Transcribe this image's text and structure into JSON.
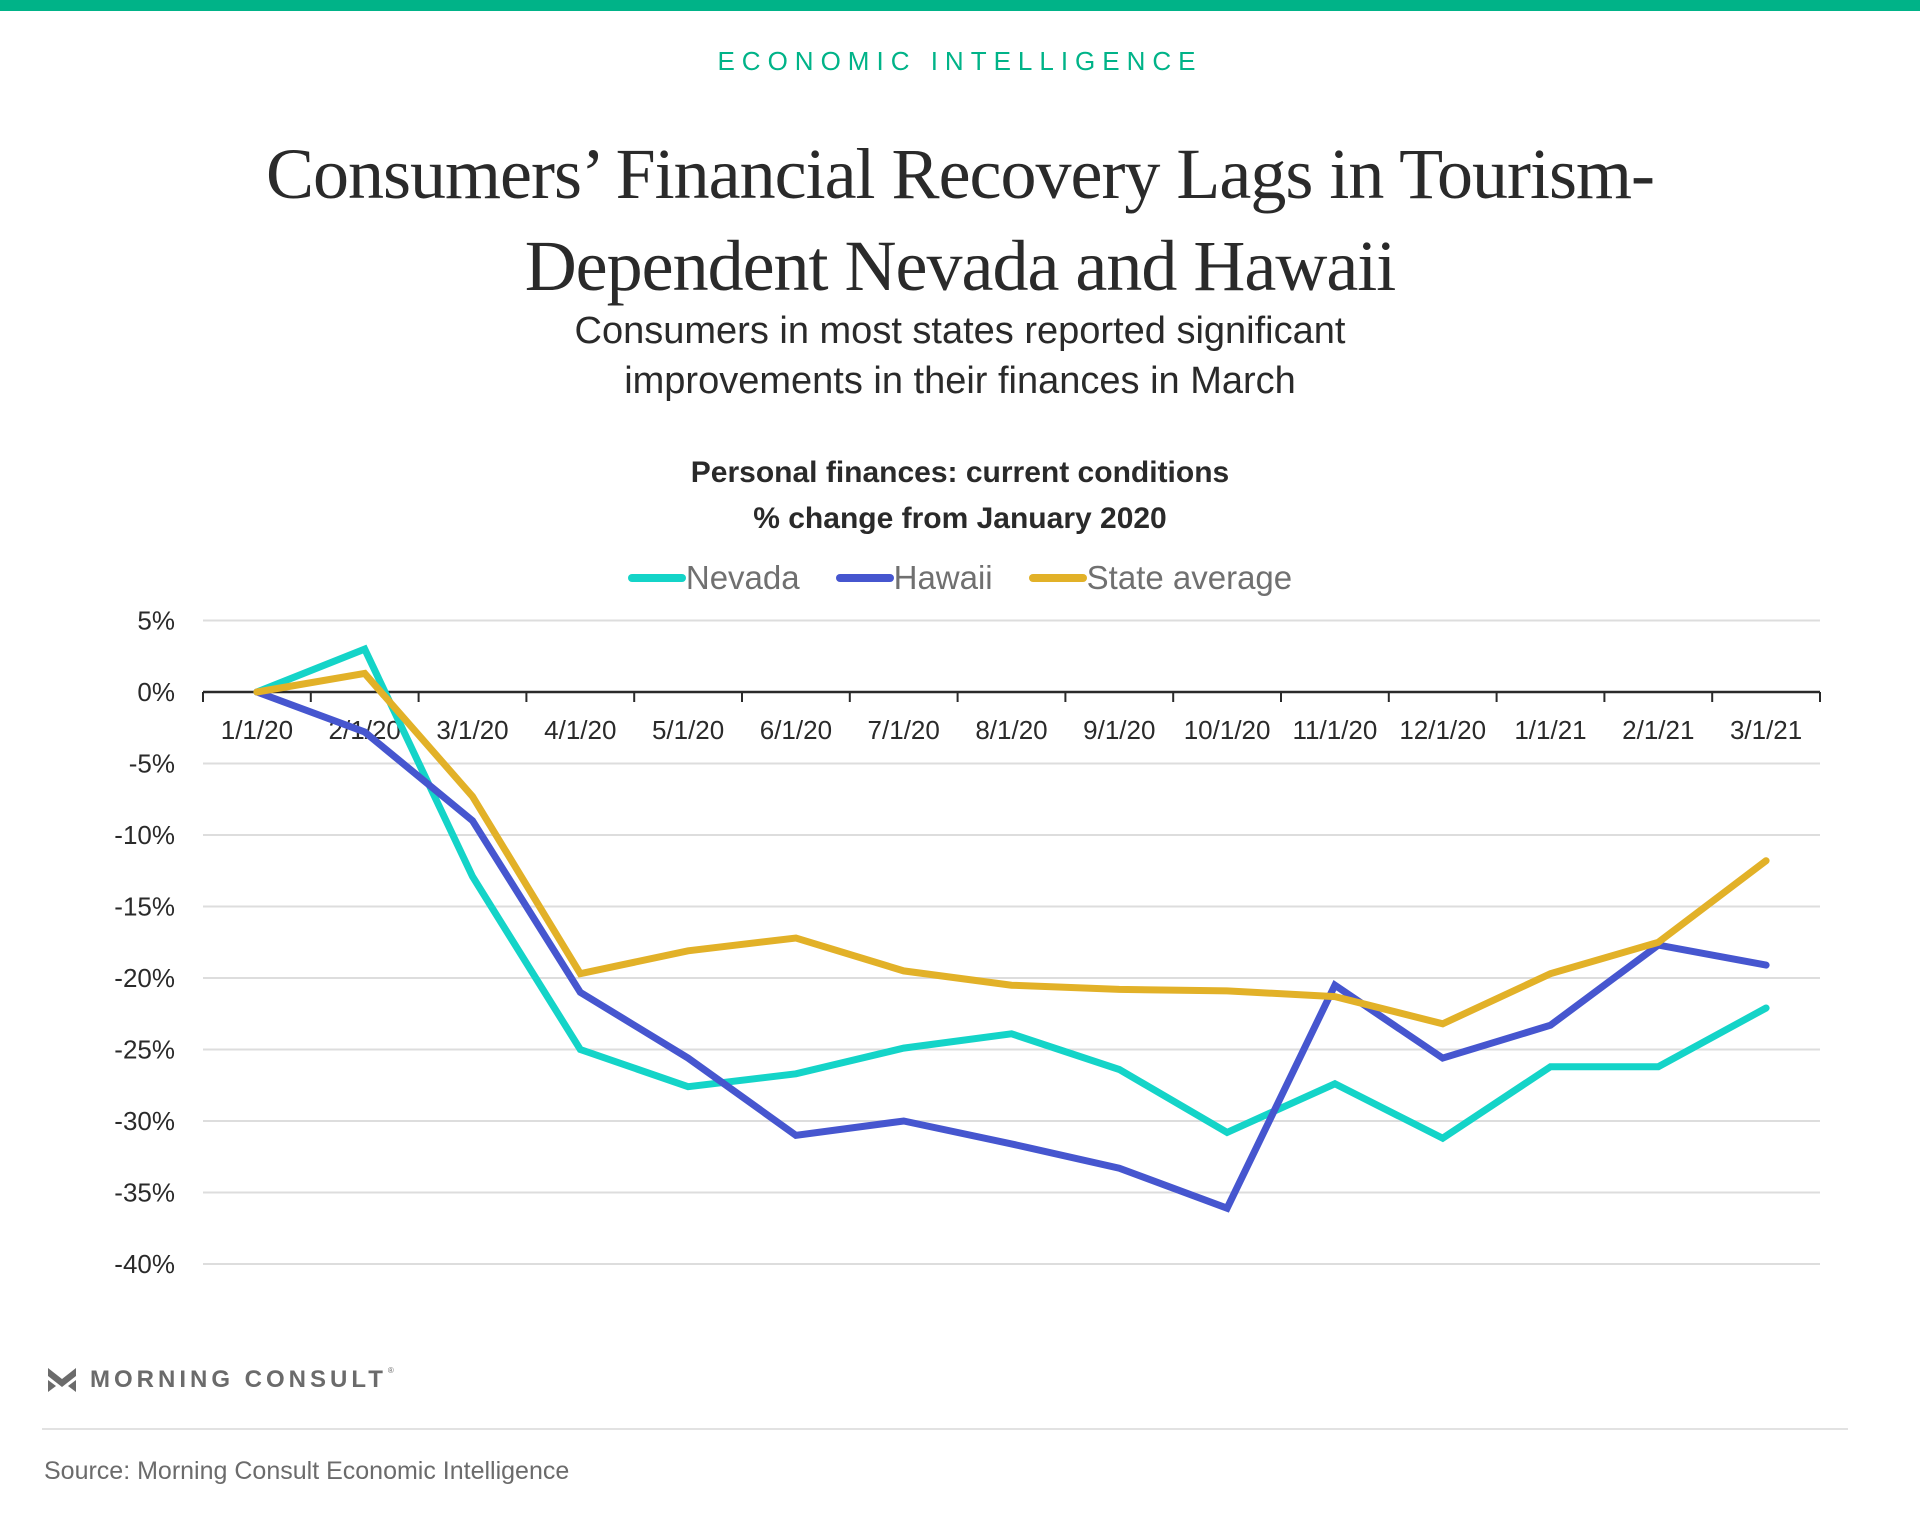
{
  "header": {
    "kicker": "ECONOMIC INTELLIGENCE",
    "title_line1": "Consumers’ Financial Recovery Lags in Tourism-",
    "title_line2": "Dependent Nevada and Hawaii",
    "subtitle_line1": "Consumers in most states reported significant",
    "subtitle_line2": "improvements in their finances in March",
    "brand_color": "#00b388"
  },
  "chart_data": {
    "type": "line",
    "title_line1": "Personal finances: current conditions",
    "title_line2": "% change from January 2020",
    "xlabel": "",
    "ylabel": "",
    "categories": [
      "1/1/20",
      "2/1/20",
      "3/1/20",
      "4/1/20",
      "5/1/20",
      "6/1/20",
      "7/1/20",
      "8/1/20",
      "9/1/20",
      "10/1/20",
      "11/1/20",
      "12/1/20",
      "1/1/21",
      "2/1/21",
      "3/1/21"
    ],
    "y_ticks": [
      5,
      0,
      -5,
      -10,
      -15,
      -20,
      -25,
      -30,
      -35,
      -40
    ],
    "y_tick_labels": [
      "5%",
      "0%",
      "-5%",
      "-10%",
      "-15%",
      "-20%",
      "-25%",
      "-30%",
      "-35%",
      "-40%"
    ],
    "ylim": [
      -40,
      5
    ],
    "grid": true,
    "legend_position": "top-center",
    "series": [
      {
        "name": "Nevada",
        "color": "#14d4c8",
        "values": [
          0,
          3.0,
          -12.9,
          -25.0,
          -27.6,
          -26.7,
          -24.9,
          -23.9,
          -26.4,
          -30.8,
          -27.4,
          -31.2,
          -26.2,
          -26.2,
          -22.1
        ]
      },
      {
        "name": "Hawaii",
        "color": "#4656cf",
        "values": [
          0,
          -2.8,
          -9.0,
          -21.0,
          -25.6,
          -31.0,
          -30.0,
          -31.6,
          -33.3,
          -36.1,
          -20.5,
          -25.6,
          -23.3,
          -17.7,
          -19.1
        ]
      },
      {
        "name": "State average",
        "color": "#e2b128",
        "values": [
          0,
          1.3,
          -7.3,
          -19.7,
          -18.1,
          -17.2,
          -19.5,
          -20.5,
          -20.8,
          -20.9,
          -21.3,
          -23.2,
          -19.7,
          -17.5,
          -11.8
        ]
      }
    ]
  },
  "footer": {
    "logo_text": "MORNING CONSULT",
    "logo_mark": "®",
    "source": "Source: Morning Consult Economic Intelligence"
  }
}
